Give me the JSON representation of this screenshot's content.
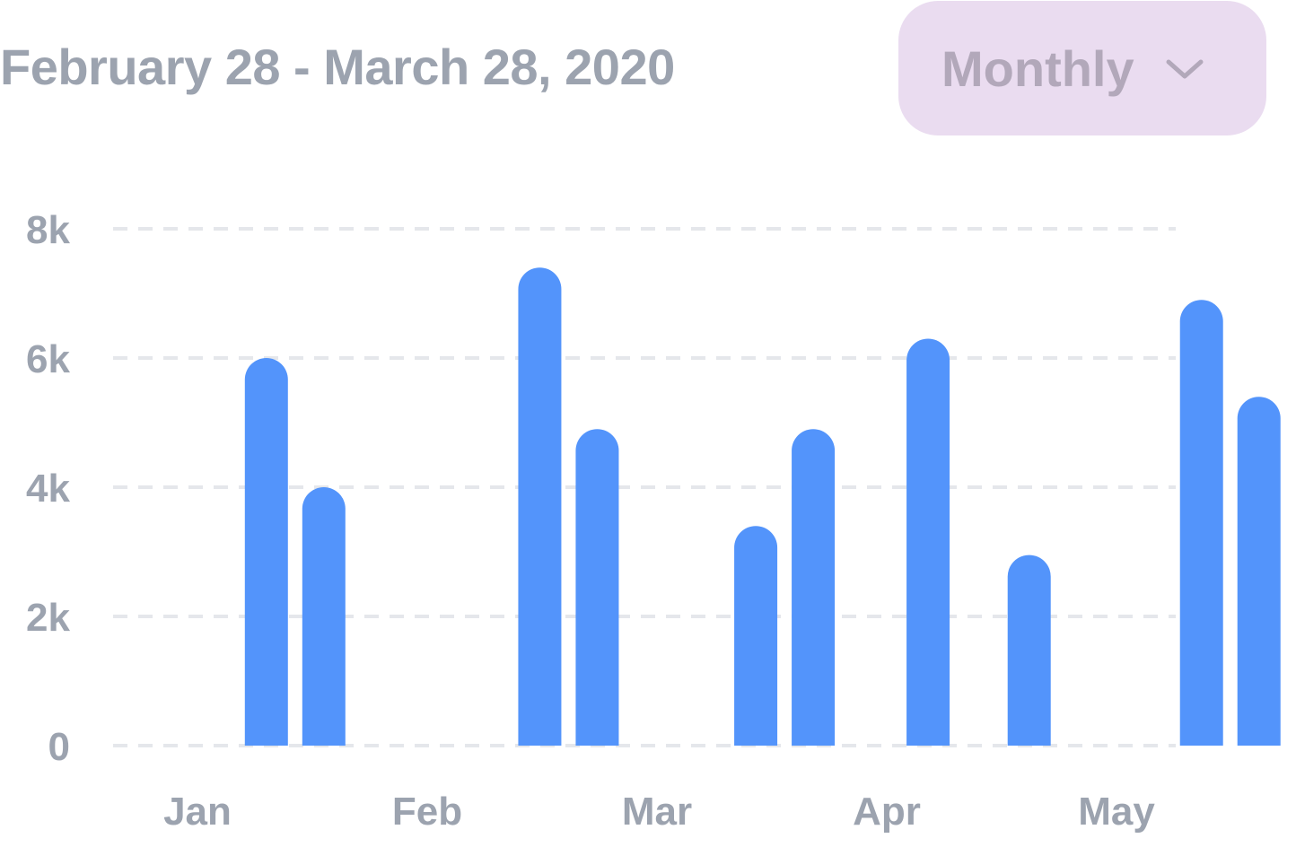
{
  "header": {
    "date_range": "February 28 - March 28, 2020",
    "period_select": {
      "value": "Monthly",
      "icon": "chevron-down-icon"
    }
  },
  "colors": {
    "bar": "#5394fb",
    "grid": "#e5e7eb",
    "label": "#9ca3af",
    "select_bg": "#eadcf0",
    "select_text": "#b2a8ba"
  },
  "chart_data": {
    "type": "bar",
    "title": "",
    "xlabel": "",
    "ylabel": "",
    "grid": true,
    "gridline_style": "dashed",
    "ylim": [
      0,
      8000
    ],
    "y_ticks": [
      {
        "value": 0,
        "label": "0"
      },
      {
        "value": 2000,
        "label": "2k"
      },
      {
        "value": 4000,
        "label": "4k"
      },
      {
        "value": 6000,
        "label": "6k"
      },
      {
        "value": 8000,
        "label": "8k"
      }
    ],
    "categories": [
      "Jan",
      "Feb",
      "Mar",
      "Apr",
      "May"
    ],
    "bars": [
      {
        "x": 0.3,
        "value": 6000
      },
      {
        "x": 0.55,
        "value": 4000
      },
      {
        "x": 1.49,
        "value": 7400
      },
      {
        "x": 1.74,
        "value": 4900
      },
      {
        "x": 2.43,
        "value": 3400
      },
      {
        "x": 2.68,
        "value": 4900
      },
      {
        "x": 3.18,
        "value": 6300
      },
      {
        "x": 3.62,
        "value": 2950
      },
      {
        "x": 4.37,
        "value": 6900
      },
      {
        "x": 4.62,
        "value": 5400
      }
    ]
  }
}
